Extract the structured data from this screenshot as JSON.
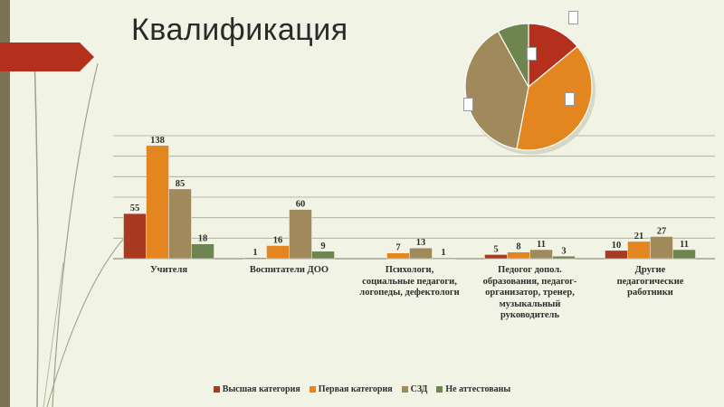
{
  "title": "Квалификация",
  "colors": {
    "background": "#f1f3e5",
    "accent_red": "#b5301c",
    "vertical_bar": "#7a7353"
  },
  "chart_data": [
    {
      "type": "bar",
      "categories": [
        "Учителя",
        "Воспитатели ДОО",
        "Психологи, социальные педагоги, логопеды, дефектологи",
        "Педогог допол. образования, педагог-организатор, тренер, музыкальный руководитель",
        "Другие педагогические работники"
      ],
      "category_lines": [
        [
          "Учителя"
        ],
        [
          "Воспитатели ДОО"
        ],
        [
          "Психологи,",
          "социальные педагоги,",
          "логопеды, дефектологи"
        ],
        [
          "Педогог допол.",
          "образования, педагог-",
          "организатор, тренер,",
          "музыкальный",
          "руководитель"
        ],
        [
          "Другие",
          "педагогические",
          "работники"
        ]
      ],
      "series": [
        {
          "name": "Высшая категория",
          "color": "#a83a22",
          "values": [
            55,
            1,
            0,
            5,
            10
          ],
          "labels": [
            "55",
            "1",
            "",
            "5",
            "10"
          ]
        },
        {
          "name": "Первая категория",
          "color": "#e3861f",
          "values": [
            138,
            16,
            7,
            8,
            21
          ],
          "labels": [
            "138",
            "16",
            "7",
            "8",
            "21"
          ]
        },
        {
          "name": "СЗД",
          "color": "#a0895b",
          "values": [
            85,
            60,
            13,
            11,
            27
          ],
          "labels": [
            "85",
            "60",
            "13",
            "11",
            "27"
          ]
        },
        {
          "name": "Не аттестованы",
          "color": "#6e8550",
          "values": [
            18,
            9,
            1,
            3,
            11
          ],
          "labels": [
            "18",
            "9",
            "1",
            "3",
            "11"
          ]
        }
      ],
      "ylim": [
        0,
        150
      ],
      "grid": true,
      "legend_position": "bottom"
    },
    {
      "type": "pie",
      "slices": [
        {
          "value": 14,
          "color": "#b5301c"
        },
        {
          "value": 39,
          "color": "#e3861f"
        },
        {
          "value": 39,
          "color": "#a0895b"
        },
        {
          "value": 8,
          "color": "#6e8550"
        }
      ]
    }
  ]
}
